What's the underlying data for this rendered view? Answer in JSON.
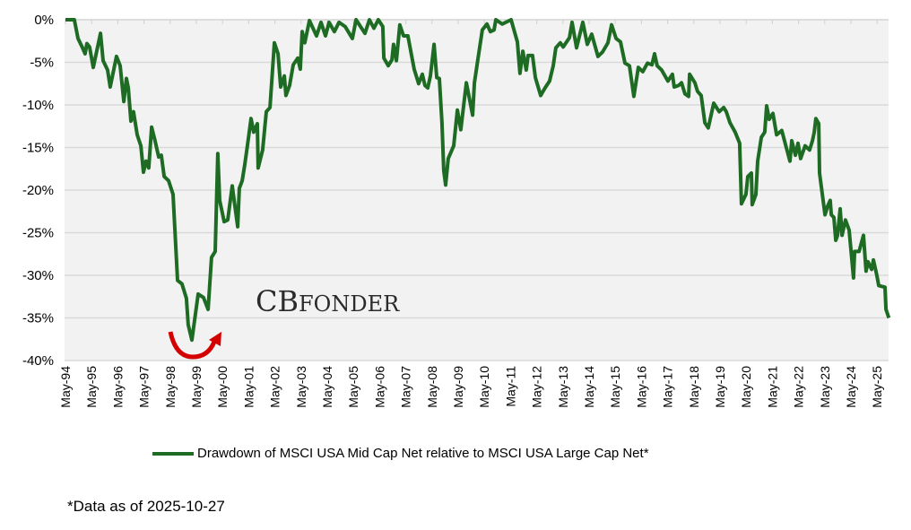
{
  "chart_data": {
    "type": "line",
    "title": "",
    "xlabel": "",
    "ylabel": "",
    "ylim": [
      -40,
      0
    ],
    "yticks": [
      0,
      -5,
      -10,
      -15,
      -20,
      -25,
      -30,
      -35,
      -40
    ],
    "ytick_labels": [
      "0%",
      "-5%",
      "-10%",
      "-15%",
      "-20%",
      "-25%",
      "-30%",
      "-35%",
      "-40%"
    ],
    "xtick_labels": [
      "May-94",
      "May-95",
      "May-96",
      "May-97",
      "May-98",
      "May-99",
      "May-00",
      "May-01",
      "May-02",
      "May-03",
      "May-04",
      "May-05",
      "May-06",
      "May-07",
      "May-08",
      "May-09",
      "May-10",
      "May-11",
      "May-12",
      "May-13",
      "May-14",
      "May-15",
      "May-16",
      "May-17",
      "May-18",
      "May-19",
      "May-20",
      "May-21",
      "May-22",
      "May-23",
      "May-24",
      "May-25"
    ],
    "xlim": [
      1994.37,
      2025.82
    ],
    "grid": true,
    "legend_position": "bottom",
    "series": [
      {
        "name": "Drawdown of MSCI USA Mid Cap Net relative to MSCI USA Large Cap Net*",
        "color": "#1e6b24",
        "points": [
          [
            1994.37,
            0
          ],
          [
            1994.71,
            0
          ],
          [
            1994.85,
            -2.2
          ],
          [
            1995.02,
            -3.3
          ],
          [
            1995.12,
            -4
          ],
          [
            1995.19,
            -2.8
          ],
          [
            1995.29,
            -3.2
          ],
          [
            1995.43,
            -5.6
          ],
          [
            1995.71,
            -1.6
          ],
          [
            1995.81,
            -4.8
          ],
          [
            1995.98,
            -5.9
          ],
          [
            1996.08,
            -7.9
          ],
          [
            1996.32,
            -4.3
          ],
          [
            1996.46,
            -5.4
          ],
          [
            1996.6,
            -9.6
          ],
          [
            1996.7,
            -6.9
          ],
          [
            1996.77,
            -8
          ],
          [
            1996.87,
            -11.9
          ],
          [
            1996.97,
            -10.8
          ],
          [
            1997.11,
            -13.5
          ],
          [
            1997.25,
            -14.8
          ],
          [
            1997.35,
            -17.9
          ],
          [
            1997.45,
            -16.6
          ],
          [
            1997.55,
            -17.4
          ],
          [
            1997.66,
            -12.6
          ],
          [
            1997.79,
            -14.2
          ],
          [
            1997.93,
            -16.1
          ],
          [
            1998.03,
            -15.9
          ],
          [
            1998.14,
            -18.4
          ],
          [
            1998.31,
            -18.9
          ],
          [
            1998.48,
            -20.5
          ],
          [
            1998.65,
            -30.6
          ],
          [
            1998.82,
            -31
          ],
          [
            1998.99,
            -32.7
          ],
          [
            1999.06,
            -35.8
          ],
          [
            1999.2,
            -37.6
          ],
          [
            1999.44,
            -32.2
          ],
          [
            1999.64,
            -32.6
          ],
          [
            1999.82,
            -34
          ],
          [
            1999.95,
            -27.9
          ],
          [
            2000.09,
            -27.2
          ],
          [
            2000.19,
            -15.7
          ],
          [
            2000.26,
            -21.2
          ],
          [
            2000.43,
            -23.7
          ],
          [
            2000.57,
            -23.5
          ],
          [
            2000.74,
            -19.5
          ],
          [
            2000.95,
            -24.3
          ],
          [
            2001.01,
            -19.8
          ],
          [
            2001.12,
            -18.9
          ],
          [
            2001.22,
            -17
          ],
          [
            2001.32,
            -14.8
          ],
          [
            2001.46,
            -11.6
          ],
          [
            2001.56,
            -13.2
          ],
          [
            2001.7,
            -12.2
          ],
          [
            2001.73,
            -17.4
          ],
          [
            2001.9,
            -15.3
          ],
          [
            2002.04,
            -10.8
          ],
          [
            2002.18,
            -10.3
          ],
          [
            2002.35,
            -2.7
          ],
          [
            2002.49,
            -4
          ],
          [
            2002.59,
            -7.9
          ],
          [
            2002.73,
            -6.6
          ],
          [
            2002.79,
            -8.9
          ],
          [
            2002.93,
            -7.7
          ],
          [
            2003.07,
            -5.3
          ],
          [
            2003.24,
            -4.5
          ],
          [
            2003.34,
            -5.8
          ],
          [
            2003.41,
            -1.4
          ],
          [
            2003.51,
            -2.7
          ],
          [
            2003.69,
            -0.1
          ],
          [
            2003.96,
            -1.9
          ],
          [
            2004.13,
            -0.3
          ],
          [
            2004.3,
            -1.9
          ],
          [
            2004.44,
            -0.3
          ],
          [
            2004.64,
            -1.4
          ],
          [
            2004.82,
            -0.3
          ],
          [
            2005.05,
            -0.8
          ],
          [
            2005.33,
            -2.2
          ],
          [
            2005.47,
            0
          ],
          [
            2005.81,
            -1.6
          ],
          [
            2005.98,
            0
          ],
          [
            2006.15,
            -1
          ],
          [
            2006.32,
            0
          ],
          [
            2006.49,
            -0.8
          ],
          [
            2006.53,
            -4.5
          ],
          [
            2006.7,
            -5.4
          ],
          [
            2006.84,
            -4.7
          ],
          [
            2006.9,
            -2.9
          ],
          [
            2007.01,
            -4.8
          ],
          [
            2007.14,
            -0.6
          ],
          [
            2007.28,
            -1.9
          ],
          [
            2007.45,
            -1.9
          ],
          [
            2007.69,
            -5.8
          ],
          [
            2007.86,
            -7.5
          ],
          [
            2008.0,
            -6.4
          ],
          [
            2008.1,
            -7.7
          ],
          [
            2008.21,
            -8
          ],
          [
            2008.31,
            -6.6
          ],
          [
            2008.45,
            -2.9
          ],
          [
            2008.55,
            -6.8
          ],
          [
            2008.65,
            -6.9
          ],
          [
            2008.75,
            -12.1
          ],
          [
            2008.82,
            -17.7
          ],
          [
            2008.89,
            -19.4
          ],
          [
            2008.99,
            -16.3
          ],
          [
            2009.2,
            -14.8
          ],
          [
            2009.34,
            -10.6
          ],
          [
            2009.47,
            -12.9
          ],
          [
            2009.68,
            -7.4
          ],
          [
            2009.92,
            -11.2
          ],
          [
            2009.99,
            -7.4
          ],
          [
            2010.12,
            -4.7
          ],
          [
            2010.29,
            -1.2
          ],
          [
            2010.47,
            -0.5
          ],
          [
            2010.6,
            -1.4
          ],
          [
            2010.74,
            -1.2
          ],
          [
            2010.81,
            0
          ],
          [
            2011.05,
            -0.5
          ],
          [
            2011.39,
            0
          ],
          [
            2011.63,
            -2.6
          ],
          [
            2011.73,
            -6.3
          ],
          [
            2011.84,
            -3.7
          ],
          [
            2011.97,
            -5.9
          ],
          [
            2012.04,
            -4.2
          ],
          [
            2012.21,
            -4.2
          ],
          [
            2012.32,
            -6.8
          ],
          [
            2012.52,
            -8.9
          ],
          [
            2012.69,
            -8
          ],
          [
            2012.86,
            -7.2
          ],
          [
            2013.0,
            -5.4
          ],
          [
            2013.1,
            -3.3
          ],
          [
            2013.27,
            -2.7
          ],
          [
            2013.38,
            -3.2
          ],
          [
            2013.62,
            -2.1
          ],
          [
            2013.72,
            -0.3
          ],
          [
            2013.89,
            -3.3
          ],
          [
            2014.13,
            -0.3
          ],
          [
            2014.3,
            -2.9
          ],
          [
            2014.47,
            -1.7
          ],
          [
            2014.71,
            -4.3
          ],
          [
            2014.88,
            -3.8
          ],
          [
            2015.09,
            -2.7
          ],
          [
            2015.23,
            -0.6
          ],
          [
            2015.4,
            -2.2
          ],
          [
            2015.57,
            -2.6
          ],
          [
            2015.74,
            -5.1
          ],
          [
            2015.91,
            -5.4
          ],
          [
            2016.08,
            -9
          ],
          [
            2016.25,
            -5.6
          ],
          [
            2016.42,
            -6.1
          ],
          [
            2016.6,
            -5.1
          ],
          [
            2016.77,
            -5.3
          ],
          [
            2016.87,
            -4
          ],
          [
            2016.97,
            -5.4
          ],
          [
            2017.14,
            -5.9
          ],
          [
            2017.38,
            -7.2
          ],
          [
            2017.55,
            -6.4
          ],
          [
            2017.62,
            -7.9
          ],
          [
            2017.79,
            -7.7
          ],
          [
            2017.9,
            -7.4
          ],
          [
            2018.03,
            -8.7
          ],
          [
            2018.17,
            -9
          ],
          [
            2018.21,
            -6.4
          ],
          [
            2018.41,
            -7.4
          ],
          [
            2018.51,
            -8.4
          ],
          [
            2018.65,
            -8.9
          ],
          [
            2018.79,
            -12.1
          ],
          [
            2018.92,
            -12.7
          ],
          [
            2019.13,
            -9.8
          ],
          [
            2019.34,
            -10.8
          ],
          [
            2019.51,
            -10.3
          ],
          [
            2019.61,
            -10.8
          ],
          [
            2019.75,
            -12.1
          ],
          [
            2019.95,
            -13.2
          ],
          [
            2020.12,
            -14.5
          ],
          [
            2020.19,
            -21.6
          ],
          [
            2020.36,
            -20.5
          ],
          [
            2020.43,
            -18.4
          ],
          [
            2020.57,
            -18
          ],
          [
            2020.6,
            -21.7
          ],
          [
            2020.74,
            -20.5
          ],
          [
            2020.81,
            -16.6
          ],
          [
            2020.95,
            -13.8
          ],
          [
            2021.08,
            -13.2
          ],
          [
            2021.15,
            -10.1
          ],
          [
            2021.25,
            -11.7
          ],
          [
            2021.39,
            -11
          ],
          [
            2021.53,
            -13.5
          ],
          [
            2021.73,
            -13
          ],
          [
            2021.9,
            -15
          ],
          [
            2022.04,
            -16.6
          ],
          [
            2022.11,
            -14.2
          ],
          [
            2022.25,
            -15.9
          ],
          [
            2022.35,
            -14.5
          ],
          [
            2022.45,
            -16.3
          ],
          [
            2022.62,
            -14.8
          ],
          [
            2022.79,
            -15.3
          ],
          [
            2022.9,
            -14.2
          ],
          [
            2022.97,
            -13.2
          ],
          [
            2023.03,
            -11.6
          ],
          [
            2023.14,
            -12.2
          ],
          [
            2023.17,
            -18
          ],
          [
            2023.38,
            -22.9
          ],
          [
            2023.48,
            -21.9
          ],
          [
            2023.58,
            -21.2
          ],
          [
            2023.62,
            -22.9
          ],
          [
            2023.72,
            -23.2
          ],
          [
            2023.79,
            -25.9
          ],
          [
            2023.86,
            -25.3
          ],
          [
            2023.96,
            -22.2
          ],
          [
            2024.03,
            -25.3
          ],
          [
            2024.16,
            -23.5
          ],
          [
            2024.3,
            -24.7
          ],
          [
            2024.47,
            -30.3
          ],
          [
            2024.51,
            -27.2
          ],
          [
            2024.68,
            -27.2
          ],
          [
            2024.85,
            -25.3
          ],
          [
            2024.95,
            -29.5
          ],
          [
            2025.02,
            -28.4
          ],
          [
            2025.16,
            -29.3
          ],
          [
            2025.23,
            -28.2
          ],
          [
            2025.36,
            -30
          ],
          [
            2025.43,
            -31.2
          ],
          [
            2025.67,
            -31.4
          ],
          [
            2025.71,
            -34
          ],
          [
            2025.82,
            -35
          ]
        ]
      }
    ],
    "annotations": [
      "*Data as of 2025-10-27"
    ]
  },
  "legend": {
    "label": "Drawdown of MSCI USA Mid Cap Net relative to MSCI USA Large Cap Net*"
  },
  "footnote": "*Data as of 2025-10-27",
  "watermark": {
    "big": "CB",
    "small": "FONDER"
  },
  "colors": {
    "line": "#1e6b24",
    "plot_bg": "#f2f2f2",
    "grid": "#d9d9d9",
    "arrow": "#d40000"
  }
}
